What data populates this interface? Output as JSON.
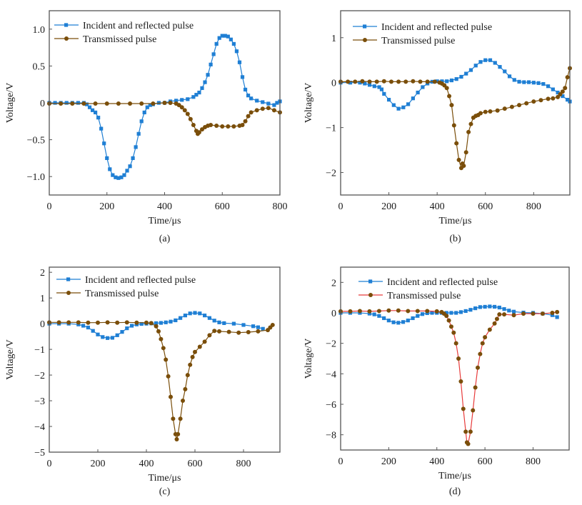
{
  "chart_data": [
    {
      "type": "line",
      "panel_label": "(a)",
      "xlabel": "Time/μs",
      "ylabel": "Voltage/V",
      "xlim": [
        0,
        800
      ],
      "ylim": [
        -1.25,
        1.25
      ],
      "xticks": [
        0,
        200,
        400,
        600,
        800
      ],
      "xtick_labels": [
        "0",
        "200",
        "400",
        "600",
        "800"
      ],
      "yticks": [
        -1.0,
        -0.5,
        0,
        0.5,
        1.0
      ],
      "ytick_labels": [
        "−1.0",
        "−0.5",
        "0",
        "0.5",
        "1.0"
      ],
      "legend": "top-left",
      "grid": false,
      "series": [
        {
          "name": "Incident and reflected pulse",
          "color": "#1f7fd4",
          "marker": "square",
          "x": [
            0,
            20,
            40,
            60,
            80,
            100,
            120,
            130,
            140,
            150,
            160,
            170,
            180,
            190,
            200,
            210,
            220,
            230,
            240,
            250,
            260,
            270,
            280,
            290,
            300,
            310,
            320,
            330,
            340,
            350,
            360,
            380,
            400,
            420,
            440,
            460,
            480,
            500,
            510,
            520,
            530,
            540,
            550,
            560,
            570,
            580,
            590,
            600,
            610,
            620,
            630,
            640,
            650,
            660,
            670,
            680,
            690,
            700,
            720,
            740,
            760,
            780,
            790,
            800
          ],
          "y": [
            0,
            0,
            0,
            0,
            0,
            0,
            0,
            -0.02,
            -0.06,
            -0.1,
            -0.13,
            -0.2,
            -0.35,
            -0.55,
            -0.75,
            -0.9,
            -0.98,
            -1.01,
            -1.02,
            -1.01,
            -0.98,
            -0.92,
            -0.86,
            -0.75,
            -0.6,
            -0.42,
            -0.25,
            -0.13,
            -0.06,
            -0.03,
            -0.02,
            0,
            0,
            0.02,
            0.03,
            0.04,
            0.05,
            0.08,
            0.11,
            0.14,
            0.2,
            0.28,
            0.38,
            0.52,
            0.66,
            0.8,
            0.88,
            0.91,
            0.91,
            0.9,
            0.86,
            0.8,
            0.7,
            0.55,
            0.35,
            0.18,
            0.1,
            0.06,
            0.03,
            0.01,
            -0.01,
            -0.03,
            0.0,
            0.02
          ]
        },
        {
          "name": "Transmissed pulse",
          "color": "#7a4e0a",
          "marker": "circle",
          "x": [
            0,
            40,
            80,
            120,
            160,
            200,
            240,
            280,
            320,
            360,
            400,
            420,
            440,
            450,
            460,
            470,
            480,
            490,
            500,
            510,
            515,
            520,
            530,
            540,
            550,
            560,
            580,
            600,
            620,
            640,
            660,
            670,
            680,
            690,
            700,
            720,
            740,
            760,
            780,
            800
          ],
          "y": [
            -0.01,
            -0.01,
            -0.01,
            -0.01,
            -0.01,
            -0.01,
            -0.01,
            -0.01,
            -0.01,
            -0.01,
            0,
            0,
            -0.01,
            -0.03,
            -0.06,
            -0.1,
            -0.15,
            -0.22,
            -0.3,
            -0.38,
            -0.42,
            -0.4,
            -0.36,
            -0.33,
            -0.31,
            -0.3,
            -0.31,
            -0.32,
            -0.32,
            -0.32,
            -0.31,
            -0.3,
            -0.25,
            -0.18,
            -0.13,
            -0.1,
            -0.08,
            -0.07,
            -0.1,
            -0.13
          ]
        }
      ]
    },
    {
      "type": "line",
      "panel_label": "(b)",
      "xlabel": "Time/μs",
      "ylabel": "Voltage/V",
      "xlim": [
        0,
        950
      ],
      "ylim": [
        -2.5,
        1.6
      ],
      "xticks": [
        0,
        200,
        400,
        600,
        800
      ],
      "xtick_labels": [
        "0",
        "200",
        "400",
        "600",
        "800"
      ],
      "yticks": [
        -2,
        -1,
        0,
        1
      ],
      "ytick_labels": [
        "−2",
        "−1",
        "0",
        "1"
      ],
      "legend": "top-left",
      "grid": false,
      "series": [
        {
          "name": "Incident and reflected pulse",
          "color": "#1f7fd4",
          "marker": "square",
          "x": [
            0,
            40,
            80,
            100,
            120,
            140,
            160,
            170,
            180,
            200,
            220,
            240,
            260,
            280,
            300,
            320,
            340,
            360,
            380,
            400,
            420,
            440,
            460,
            480,
            500,
            520,
            540,
            560,
            580,
            600,
            620,
            640,
            660,
            680,
            700,
            720,
            740,
            760,
            780,
            800,
            820,
            840,
            860,
            880,
            900,
            920,
            940,
            950
          ],
          "y": [
            0,
            0,
            0,
            -0.02,
            -0.05,
            -0.08,
            -0.1,
            -0.15,
            -0.25,
            -0.38,
            -0.5,
            -0.58,
            -0.55,
            -0.48,
            -0.35,
            -0.22,
            -0.1,
            -0.02,
            0.02,
            0.03,
            0.03,
            0.03,
            0.05,
            0.08,
            0.13,
            0.2,
            0.28,
            0.38,
            0.46,
            0.5,
            0.5,
            0.44,
            0.35,
            0.25,
            0.14,
            0.06,
            0.02,
            0.01,
            0.01,
            0.0,
            -0.01,
            -0.03,
            -0.08,
            -0.15,
            -0.22,
            -0.3,
            -0.38,
            -0.42
          ]
        },
        {
          "name": "Transmissed pulse",
          "color": "#7a4e0a",
          "marker": "circle",
          "x": [
            0,
            30,
            60,
            90,
            120,
            150,
            180,
            210,
            240,
            270,
            300,
            330,
            360,
            390,
            410,
            420,
            430,
            440,
            450,
            460,
            470,
            480,
            490,
            500,
            505,
            510,
            520,
            530,
            540,
            550,
            560,
            570,
            580,
            600,
            620,
            650,
            680,
            710,
            740,
            770,
            800,
            830,
            860,
            880,
            900,
            910,
            920,
            930,
            940,
            950
          ],
          "y": [
            0.02,
            0.02,
            0.02,
            0.03,
            0.02,
            0.02,
            0.03,
            0.02,
            0.02,
            0.02,
            0.03,
            0.02,
            0.02,
            0.02,
            0.0,
            -0.02,
            -0.06,
            -0.12,
            -0.3,
            -0.5,
            -0.95,
            -1.35,
            -1.72,
            -1.9,
            -1.8,
            -1.85,
            -1.55,
            -1.1,
            -0.92,
            -0.78,
            -0.74,
            -0.72,
            -0.68,
            -0.65,
            -0.64,
            -0.62,
            -0.58,
            -0.54,
            -0.5,
            -0.46,
            -0.42,
            -0.39,
            -0.36,
            -0.35,
            -0.32,
            -0.26,
            -0.2,
            -0.12,
            0.12,
            0.32
          ]
        }
      ]
    },
    {
      "type": "line",
      "panel_label": "(c)",
      "xlabel": "Time/μs",
      "ylabel": "Voltage/V",
      "xlim": [
        0,
        950
      ],
      "ylim": [
        -5,
        2.2
      ],
      "xticks": [
        0,
        200,
        400,
        600,
        800
      ],
      "xtick_labels": [
        "0",
        "200",
        "400",
        "600",
        "800"
      ],
      "yticks": [
        -5,
        -4,
        -3,
        -2,
        -1,
        0,
        1,
        2
      ],
      "ytick_labels": [
        "−5",
        "−4",
        "−3",
        "−2",
        "−1",
        "0",
        "1",
        "2"
      ],
      "legend": "top-left",
      "grid": false,
      "series": [
        {
          "name": "Incident and reflected pulse",
          "color": "#1f7fd4",
          "marker": "square",
          "x": [
            0,
            40,
            80,
            120,
            140,
            160,
            180,
            200,
            220,
            240,
            260,
            280,
            300,
            320,
            340,
            360,
            380,
            400,
            420,
            440,
            460,
            480,
            500,
            520,
            540,
            560,
            580,
            600,
            620,
            640,
            660,
            680,
            700,
            720,
            760,
            800,
            840,
            860,
            880
          ],
          "y": [
            0,
            0,
            0,
            -0.03,
            -0.08,
            -0.15,
            -0.28,
            -0.42,
            -0.52,
            -0.56,
            -0.55,
            -0.45,
            -0.32,
            -0.18,
            -0.08,
            -0.03,
            -0.01,
            0,
            0.01,
            0.02,
            0.03,
            0.05,
            0.08,
            0.13,
            0.22,
            0.32,
            0.4,
            0.42,
            0.4,
            0.32,
            0.22,
            0.12,
            0.05,
            0.02,
            0.0,
            -0.05,
            -0.1,
            -0.14,
            -0.2
          ]
        },
        {
          "name": "Transmissed pulse",
          "color": "#7a4e0a",
          "marker": "circle",
          "x": [
            0,
            40,
            80,
            120,
            160,
            200,
            240,
            280,
            320,
            360,
            400,
            420,
            440,
            450,
            460,
            470,
            480,
            490,
            500,
            510,
            520,
            525,
            530,
            540,
            550,
            560,
            570,
            580,
            590,
            600,
            620,
            640,
            660,
            680,
            700,
            740,
            780,
            820,
            860,
            900,
            910,
            920
          ],
          "y": [
            0.05,
            0.05,
            0.05,
            0.05,
            0.04,
            0.04,
            0.05,
            0.04,
            0.05,
            0.04,
            0.04,
            0.02,
            -0.1,
            -0.3,
            -0.6,
            -0.95,
            -1.4,
            -2.05,
            -2.85,
            -3.7,
            -4.3,
            -4.5,
            -4.3,
            -3.7,
            -3.0,
            -2.55,
            -2.0,
            -1.6,
            -1.3,
            -1.1,
            -0.9,
            -0.7,
            -0.45,
            -0.28,
            -0.3,
            -0.32,
            -0.35,
            -0.33,
            -0.3,
            -0.25,
            -0.15,
            -0.05
          ]
        }
      ]
    },
    {
      "type": "line",
      "panel_label": "(d)",
      "xlabel": "Time/μs",
      "ylabel": "Voltage/V",
      "xlim": [
        0,
        950
      ],
      "ylim": [
        -9,
        3
      ],
      "xticks": [
        0,
        200,
        400,
        600,
        800
      ],
      "xtick_labels": [
        "0",
        "200",
        "400",
        "600",
        "800"
      ],
      "yticks": [
        -8,
        -6,
        -4,
        -2,
        0,
        2
      ],
      "ytick_labels": [
        "−8",
        "−6",
        "−4",
        "−2",
        "0",
        "2"
      ],
      "legend": "top-left",
      "grid": false,
      "series": [
        {
          "name": "Incident and reflected pulse",
          "color": "#1f7fd4",
          "marker": "square",
          "x": [
            0,
            40,
            80,
            120,
            140,
            160,
            180,
            200,
            220,
            240,
            260,
            280,
            300,
            320,
            340,
            360,
            380,
            400,
            420,
            440,
            460,
            480,
            500,
            520,
            540,
            560,
            580,
            600,
            620,
            640,
            660,
            680,
            700,
            720,
            760,
            800,
            840,
            880,
            900
          ],
          "y": [
            0,
            0,
            0,
            -0.05,
            -0.1,
            -0.2,
            -0.35,
            -0.5,
            -0.62,
            -0.65,
            -0.6,
            -0.5,
            -0.35,
            -0.2,
            -0.08,
            -0.02,
            0,
            0,
            0,
            0,
            0,
            0,
            0.05,
            0.12,
            0.2,
            0.3,
            0.38,
            0.4,
            0.42,
            0.4,
            0.35,
            0.25,
            0.15,
            0.08,
            0.02,
            0,
            -0.05,
            -0.15,
            -0.28
          ]
        },
        {
          "name": "Transmissed pulse",
          "color": "#7a4e0a",
          "line_color": "#e83b3b",
          "marker": "circle",
          "x": [
            0,
            40,
            80,
            120,
            160,
            200,
            240,
            280,
            320,
            360,
            400,
            420,
            430,
            440,
            450,
            460,
            470,
            480,
            490,
            500,
            510,
            520,
            525,
            530,
            540,
            550,
            560,
            570,
            580,
            590,
            600,
            620,
            640,
            650,
            660,
            680,
            720,
            760,
            800,
            840,
            880,
            900
          ],
          "y": [
            0.1,
            0.1,
            0.12,
            0.1,
            0.12,
            0.15,
            0.15,
            0.12,
            0.12,
            0.12,
            0.1,
            0.05,
            -0.05,
            -0.2,
            -0.5,
            -0.9,
            -1.3,
            -2.0,
            -3.0,
            -4.5,
            -6.3,
            -7.8,
            -8.5,
            -8.6,
            -7.8,
            -6.4,
            -4.9,
            -3.6,
            -2.7,
            -2.0,
            -1.6,
            -1.1,
            -0.7,
            -0.4,
            -0.1,
            -0.1,
            -0.15,
            -0.05,
            -0.05,
            -0.05,
            0,
            0.05
          ]
        }
      ]
    }
  ]
}
